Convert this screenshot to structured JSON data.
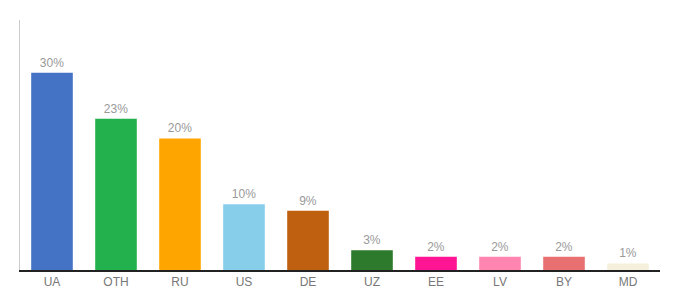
{
  "chart_data": {
    "type": "bar",
    "categories": [
      "UA",
      "OTH",
      "RU",
      "US",
      "DE",
      "UZ",
      "EE",
      "LV",
      "BY",
      "MD"
    ],
    "values": [
      30,
      23,
      20,
      10,
      9,
      3,
      2,
      2,
      2,
      1
    ],
    "value_labels": [
      "30%",
      "23%",
      "20%",
      "10%",
      "9%",
      "3%",
      "2%",
      "2%",
      "2%",
      "1%"
    ],
    "colors": [
      "#4472c4",
      "#22b14c",
      "#ffa500",
      "#87ceeb",
      "#bf6010",
      "#2d7a2d",
      "#ff1493",
      "#ff85b0",
      "#e87070",
      "#f5f0dc"
    ],
    "ylim": [
      0,
      38
    ],
    "grid": false,
    "data_labels": true,
    "tick_labels": "x"
  }
}
